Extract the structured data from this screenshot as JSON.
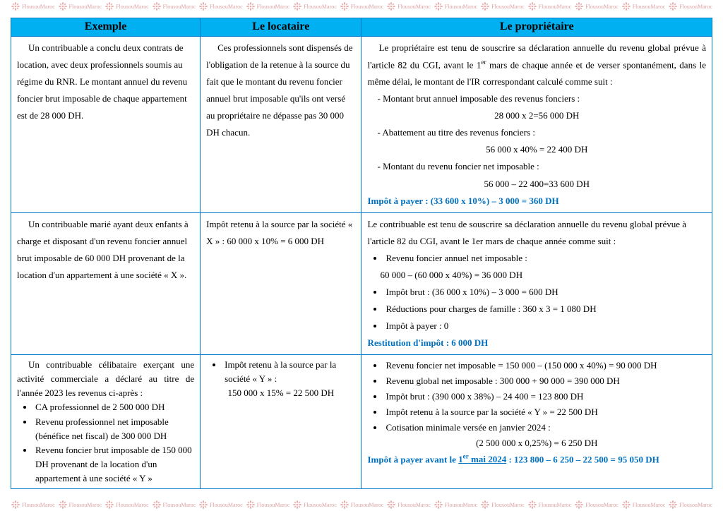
{
  "watermark": "FlousouMaroc",
  "headers": {
    "c1": "Exemple",
    "c2": "Le locataire",
    "c3": "Le propriétaire"
  },
  "row1": {
    "exemple": "Un contribuable a conclu deux contrats de location, avec deux professionnels soumis au régime du RNR. Le montant annuel du revenu foncier brut imposable de chaque appartement est de 28 000 DH.",
    "locataire": "Ces professionnels sont dispensés de l'obligation de la retenue à la source du fait que le montant du revenu foncier annuel brut imposable qu'ils ont versé au propriétaire ne dépasse pas 30 000 DH chacun.",
    "prop_intro_a": "Le propriétaire est tenu de souscrire sa déclaration annuelle du revenu global prévue à l'article 82 du CGI, avant le 1",
    "prop_intro_b": " mars de chaque année et de verser spontanément, dans le même délai, le montant de l'IR correspondant calculé comme suit :",
    "li1": "- Montant brut annuel imposable des revenus fonciers :",
    "li1v": "28 000 x 2=56 000 DH",
    "li2": "- Abattement au titre des revenus fonciers :",
    "li2v": "56 000 x 40% = 22 400 DH",
    "li3": "- Montant du revenu foncier net imposable :",
    "li3v": "56 000 – 22 400=33 600 DH",
    "final": "Impôt à payer :   (33 600 x 10%) – 3 000 = 360 DH"
  },
  "row2": {
    "exemple": "Un contribuable marié ayant deux enfants à charge et disposant d'un revenu foncier annuel brut imposable de 60 000 DH provenant de la location d'un appartement à une société « X ».",
    "locataire": "Impôt retenu à la source par la société « X » : 60 000 x 10% = 6 000 DH",
    "prop_intro": "Le contribuable est tenu de souscrire sa déclaration annuelle du revenu global prévue à l'article 82 du CGI, avant le 1er mars de chaque année comme suit :",
    "b1": "Revenu foncier annuel net imposable :",
    "b1v": "60 000 – (60 000 x 40%)   = 36 000 DH",
    "b2": "Impôt brut :   (36 000 x 10%) – 3 000 = 600 DH",
    "b3": "Réductions pour charges de famille :    360 x 3 = 1 080 DH",
    "b4": "Impôt à payer : 0",
    "final": "Restitution d'impôt : 6 000 DH"
  },
  "row3": {
    "ex_intro": "Un contribuable célibataire exerçant une activité commerciale a déclaré au titre de l'année 2023 les revenus ci-après :",
    "ex_b1": "CA professionnel de 2 500 000 DH",
    "ex_b2": "Revenu professionnel net imposable (bénéfice net fiscal) de 300 000 DH",
    "ex_b3": "Revenu foncier brut imposable de 150 000 DH provenant de la location d'un appartement à une société « Y »",
    "loc_b1": "Impôt retenu à la source par la société « Y » :",
    "loc_b1v": "150 000 x 15% = 22 500 DH",
    "p_b1": "Revenu foncier net imposable = 150 000 – (150 000 x 40%) = 90 000 DH",
    "p_b2": "Revenu global net imposable : 300 000 + 90 000 = 390 000 DH",
    "p_b3": "Impôt brut : (390 000 x 38%) – 24 400 = 123 800 DH",
    "p_b4": "Impôt retenu à la source par la société « Y »   = 22 500 DH",
    "p_b5": "Cotisation minimale versée en janvier 2024 :",
    "p_b5v": "(2 500 000 x 0,25%) = 6 250 DH",
    "final_a": "Impôt à payer avant le ",
    "final_b": " mai 2024",
    "final_c": " : 123 800 – 6 250 – 22 500 = 95 050 DH"
  }
}
